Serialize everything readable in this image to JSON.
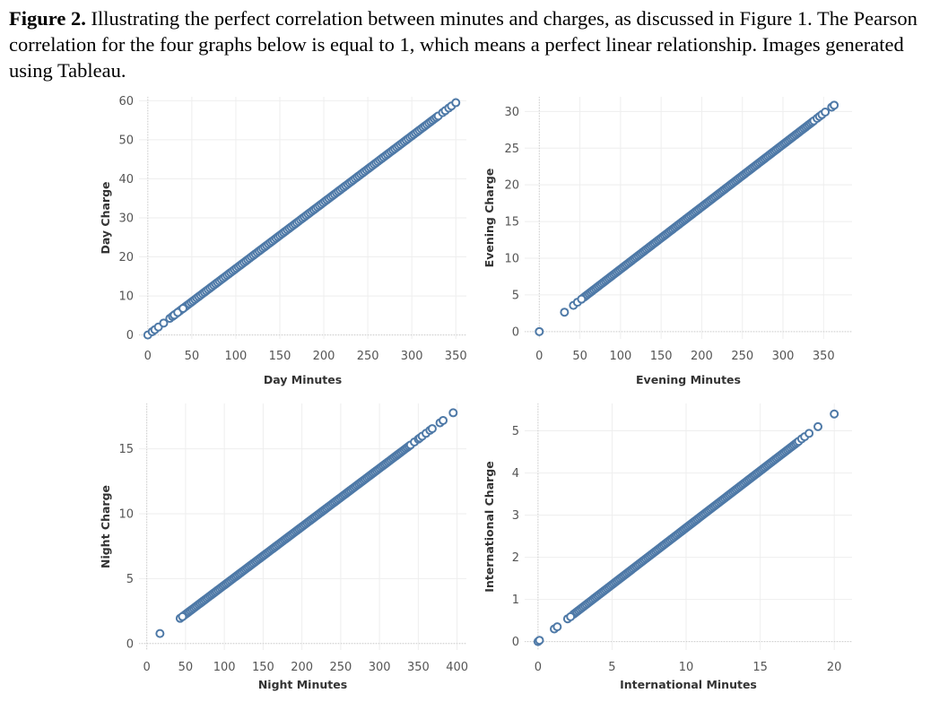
{
  "caption": {
    "label": "Figure 2.",
    "text": " Illustrating the perfect correlation between minutes and charges, as discussed in Figure 1. The Pearson correlation for the four graphs below is equal to 1, which means a perfect linear relationship. Images generated using Tableau."
  },
  "colors": {
    "marker": "#4e79a7",
    "grid": "#eeeeee",
    "zero_line": "#cccccc"
  },
  "chart_data": [
    {
      "type": "scatter",
      "xlabel": "Day Minutes",
      "ylabel": "Day Charge",
      "xlim": [
        -10,
        362
      ],
      "ylim": [
        -1,
        61
      ],
      "xticks": [
        0,
        50,
        100,
        150,
        200,
        250,
        300,
        350
      ],
      "yticks": [
        0,
        10,
        20,
        30,
        40,
        50,
        60
      ],
      "slope": 0.17,
      "x_range": [
        30,
        330
      ],
      "x": [
        0,
        5,
        8,
        12,
        18,
        25,
        28,
        30,
        34,
        40,
        335,
        338,
        342,
        345,
        350
      ],
      "y": [
        0.0,
        0.85,
        1.36,
        2.04,
        3.06,
        4.25,
        4.76,
        5.1,
        5.78,
        6.8,
        56.95,
        57.46,
        58.14,
        58.65,
        59.5
      ],
      "grid": true
    },
    {
      "type": "scatter",
      "xlabel": "Evening Minutes",
      "ylabel": "Evening Charge",
      "xlim": [
        -18,
        385
      ],
      "ylim": [
        -1,
        32
      ],
      "xticks": [
        0,
        50,
        100,
        150,
        200,
        250,
        300,
        350
      ],
      "yticks": [
        0,
        5,
        10,
        15,
        20,
        25,
        30
      ],
      "slope": 0.085,
      "x_range": [
        55,
        338
      ],
      "x": [
        0,
        31,
        42,
        47,
        52,
        342,
        345,
        348,
        352,
        360,
        363
      ],
      "y": [
        0.0,
        2.64,
        3.57,
        4.0,
        4.42,
        29.07,
        29.33,
        29.58,
        29.92,
        30.6,
        30.86
      ],
      "grid": true
    },
    {
      "type": "scatter",
      "xlabel": "Night Minutes",
      "ylabel": "Night Charge",
      "xlim": [
        -10,
        412
      ],
      "ylim": [
        -0.5,
        18.5
      ],
      "xticks": [
        0,
        50,
        100,
        150,
        200,
        250,
        300,
        350,
        400
      ],
      "yticks": [
        0,
        5,
        10,
        15
      ],
      "slope": 0.045,
      "x_range": [
        48,
        340
      ],
      "x": [
        17,
        43,
        46,
        345,
        350,
        352,
        355,
        360,
        365,
        368,
        378,
        382,
        395
      ],
      "y": [
        0.77,
        1.94,
        2.07,
        15.53,
        15.75,
        15.84,
        15.98,
        16.2,
        16.43,
        16.56,
        17.01,
        17.19,
        17.78
      ],
      "grid": true
    },
    {
      "type": "scatter",
      "xlabel": "International Minutes",
      "ylabel": "International Charge",
      "xlim": [
        -0.9,
        21.2
      ],
      "ylim": [
        -0.2,
        5.65
      ],
      "xticks": [
        0,
        5,
        10,
        15,
        20
      ],
      "yticks": [
        0,
        1,
        2,
        3,
        4,
        5
      ],
      "slope": 0.27,
      "x_range": [
        2.4,
        17.6
      ],
      "x": [
        0,
        0.1,
        1.1,
        1.3,
        2.0,
        2.2,
        17.8,
        18.0,
        18.3,
        18.9,
        20.0
      ],
      "y": [
        0.0,
        0.03,
        0.3,
        0.35,
        0.54,
        0.59,
        4.81,
        4.86,
        4.94,
        5.1,
        5.4
      ],
      "grid": true
    }
  ]
}
